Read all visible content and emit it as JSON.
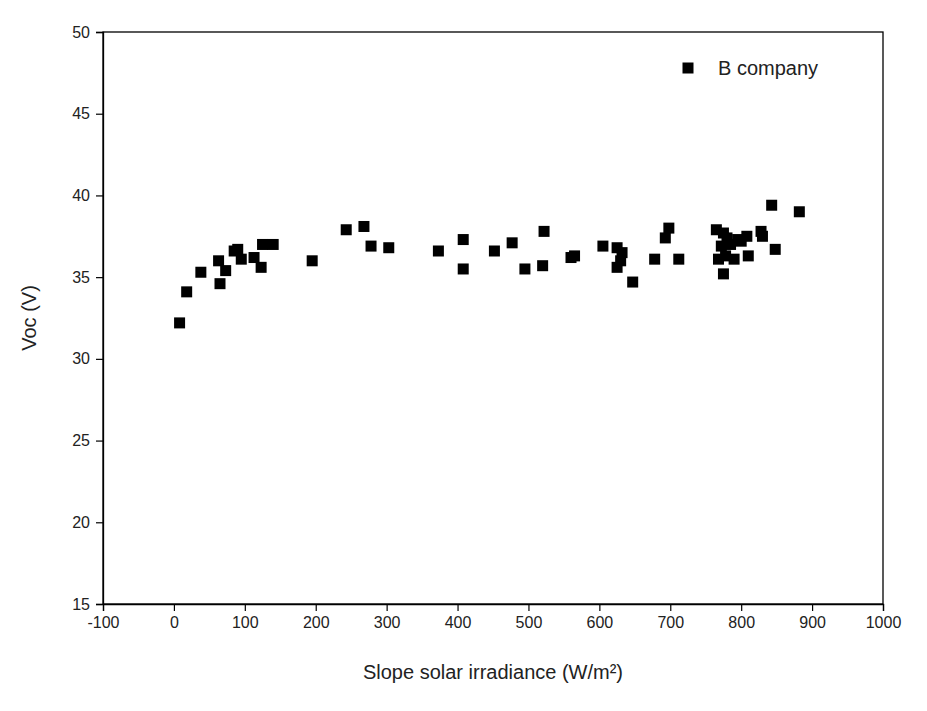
{
  "chart_data": {
    "type": "scatter",
    "xlabel": "Slope solar irradiance (W/m²)",
    "ylabel": "Voc (V)",
    "x": [
      8,
      18,
      38,
      63,
      65,
      73,
      85,
      90,
      95,
      113,
      123,
      125,
      140,
      195,
      243,
      268,
      278,
      303,
      373,
      408,
      408,
      452,
      477,
      495,
      520,
      522,
      560,
      565,
      605,
      625,
      625,
      630,
      632,
      647,
      678,
      693,
      698,
      712,
      765,
      768,
      772,
      775,
      775,
      778,
      780,
      785,
      790,
      795,
      800,
      808,
      810,
      828,
      830,
      843,
      848,
      882
    ],
    "series": [
      {
        "name": "B company",
        "color": "#000000",
        "marker": "square",
        "values": [
          32.2,
          34.1,
          35.3,
          36.0,
          34.6,
          35.4,
          36.6,
          36.7,
          36.1,
          36.2,
          35.6,
          37.0,
          37.0,
          36.0,
          37.9,
          38.1,
          36.9,
          36.8,
          36.6,
          37.3,
          35.5,
          36.6,
          37.1,
          35.5,
          35.7,
          37.8,
          36.2,
          36.3,
          36.9,
          36.8,
          35.6,
          36.0,
          36.5,
          34.7,
          36.1,
          37.4,
          38.0,
          36.1,
          37.9,
          36.1,
          36.9,
          37.7,
          35.2,
          36.3,
          37.4,
          37.0,
          36.1,
          37.3,
          37.2,
          37.5,
          36.3,
          37.8,
          37.5,
          39.4,
          36.7,
          39.0
        ]
      }
    ],
    "xlim": [
      -100,
      1000
    ],
    "xticks": [
      -100,
      0,
      100,
      200,
      300,
      400,
      500,
      600,
      700,
      800,
      900,
      1000
    ],
    "ylim": [
      15,
      50
    ],
    "yticks": [
      15,
      20,
      25,
      30,
      35,
      40,
      45,
      50
    ],
    "legend": "upper right",
    "grid": false
  }
}
